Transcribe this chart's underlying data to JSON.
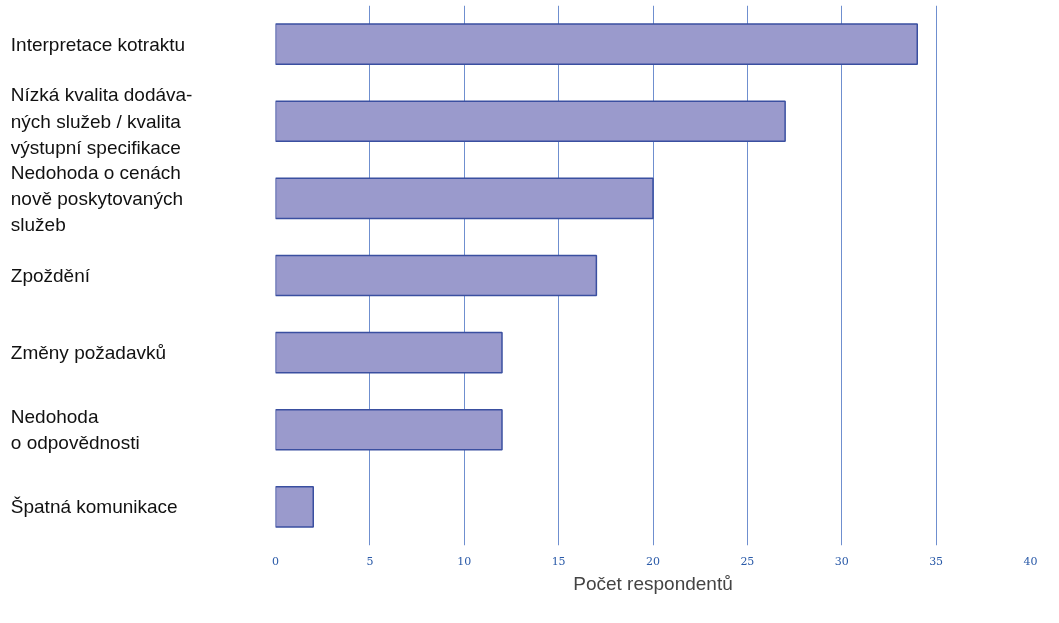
{
  "chart_data": {
    "type": "bar",
    "orientation": "horizontal",
    "xlabel": "Počet respondentů",
    "categories": [
      "Interpretace kotraktu",
      "Nízká kvalita dodáva-\nných služeb / kvalita\nvýstupní specifikace",
      "Nedohoda o cenách\nnově poskytovaných\nslužeb",
      "Zpoždění",
      "Změny požadavků",
      "Nedohoda\no odpovědnosti",
      "Špatná komunikace"
    ],
    "values": [
      34,
      27,
      20,
      17,
      12,
      12,
      2
    ],
    "color": "#9a9acc",
    "xlim": [
      0,
      40
    ],
    "xticks": [
      0,
      5,
      10,
      15,
      20,
      25,
      30,
      35,
      40
    ],
    "grid": "x"
  }
}
